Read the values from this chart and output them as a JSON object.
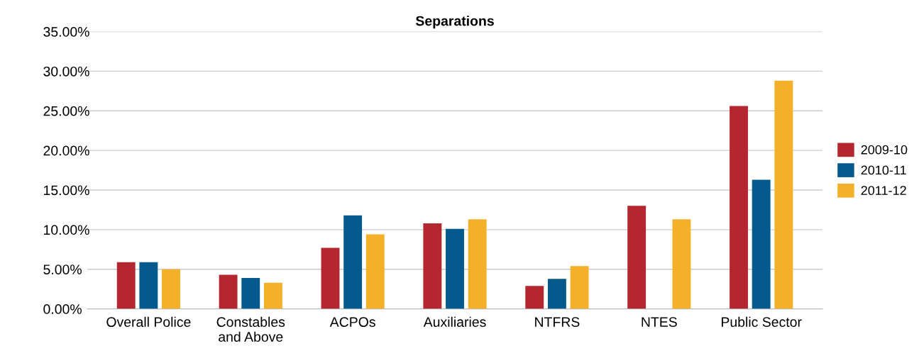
{
  "chart_data": {
    "type": "bar",
    "title": "Separations",
    "categories": [
      "Overall Police",
      "Constables\nand Above",
      "ACPOs",
      "Auxiliaries",
      "NTFRS",
      "NTES",
      "Public Sector"
    ],
    "series": [
      {
        "name": "2009-10",
        "color": "#b5272f",
        "values": [
          5.9,
          4.3,
          7.7,
          10.8,
          2.9,
          13.0,
          25.6
        ]
      },
      {
        "name": "2010-11",
        "color": "#045a8d",
        "values": [
          5.9,
          3.9,
          11.8,
          10.1,
          3.8,
          null,
          16.3
        ]
      },
      {
        "name": "2011-12",
        "color": "#f5b02a",
        "values": [
          5.0,
          3.3,
          9.4,
          11.3,
          5.4,
          11.3,
          28.8
        ]
      }
    ],
    "ylim": [
      0,
      35
    ],
    "yticks": [
      {
        "value": 0,
        "label": "0.00%"
      },
      {
        "value": 5,
        "label": "5.00%"
      },
      {
        "value": 10,
        "label": "10.00%"
      },
      {
        "value": 15,
        "label": "15.00%"
      },
      {
        "value": 20,
        "label": "20.00%"
      },
      {
        "value": 25,
        "label": "25.00%"
      },
      {
        "value": 30,
        "label": "30.00%"
      },
      {
        "value": 35,
        "label": "35.00%"
      }
    ],
    "grid": "y",
    "legend": "right"
  }
}
